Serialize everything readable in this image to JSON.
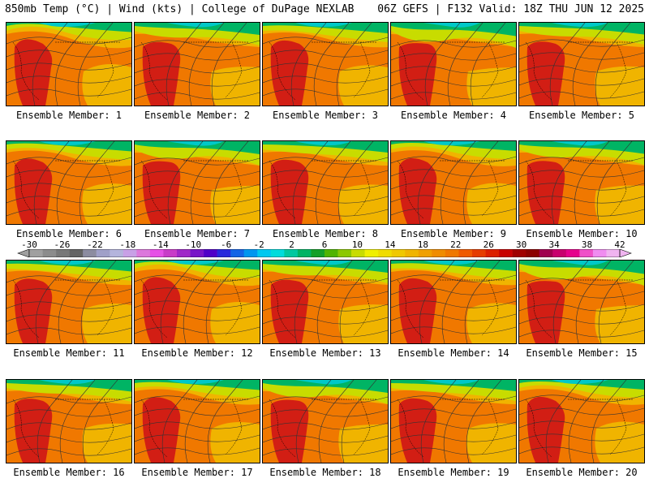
{
  "header": {
    "title_left": "850mb Temp (°C) | Wind (kts) | College of DuPage NEXLAB",
    "title_right": "06Z GEFS | F132 Valid: 18Z THU JUN 12 2025"
  },
  "members": [
    "Ensemble Member: 1",
    "Ensemble Member: 2",
    "Ensemble Member: 3",
    "Ensemble Member: 4",
    "Ensemble Member: 5",
    "Ensemble Member: 6",
    "Ensemble Member: 7",
    "Ensemble Member: 8",
    "Ensemble Member: 9",
    "Ensemble Member: 10",
    "Ensemble Member: 11",
    "Ensemble Member: 12",
    "Ensemble Member: 13",
    "Ensemble Member: 14",
    "Ensemble Member: 15",
    "Ensemble Member: 16",
    "Ensemble Member: 17",
    "Ensemble Member: 18",
    "Ensemble Member: 19",
    "Ensemble Member: 20"
  ],
  "colorbar": {
    "labels": [
      "-30",
      "-26",
      "-22",
      "-18",
      "-14",
      "-10",
      "-6",
      "-2",
      "2",
      "6",
      "10",
      "14",
      "18",
      "22",
      "26",
      "30",
      "34",
      "38",
      "42"
    ],
    "colors": [
      "#a0a0a0",
      "#8c8c8c",
      "#787878",
      "#646464",
      "#8c8ca0",
      "#a0a0c8",
      "#b4b4dc",
      "#c8a0e6",
      "#dc78dc",
      "#e650e6",
      "#c83cc8",
      "#a028c8",
      "#7814c8",
      "#5000c8",
      "#2828dc",
      "#1464e6",
      "#0096f0",
      "#00c8f0",
      "#00dcdc",
      "#00c8a0",
      "#00b464",
      "#14a028",
      "#50b400",
      "#8cc800",
      "#c8dc00",
      "#f0f000",
      "#f0dc00",
      "#f0c800",
      "#f0b400",
      "#f0a000",
      "#f08c00",
      "#f07800",
      "#f05a00",
      "#e63c00",
      "#dc1e00",
      "#c80000",
      "#a00000",
      "#8c0000",
      "#a00050",
      "#c8006e",
      "#e6008c",
      "#f050c8",
      "#f08cf0",
      "#f0b4f0"
    ]
  },
  "colors": {
    "hot": "#d21e14",
    "warm": "#f07800",
    "mild": "#f0b400",
    "cool": "#c8dc00",
    "cold": "#00b464",
    "coldest": "#00c8c8"
  }
}
